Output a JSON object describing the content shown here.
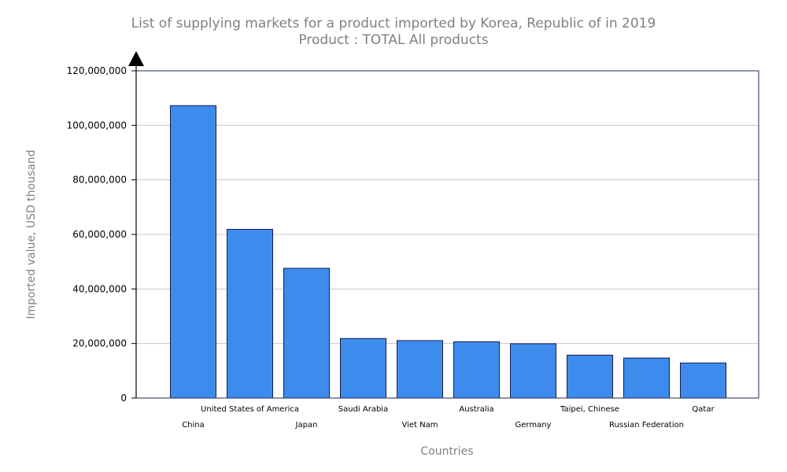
{
  "chart_data": {
    "type": "bar",
    "title": "List of supplying markets for a product imported by Korea, Republic of in 2019",
    "subtitle": "Product : TOTAL All products",
    "xlabel": "Countries",
    "ylabel": "Imported value, USD thousand",
    "ylim": [
      0,
      120000000
    ],
    "yticks": [
      "0",
      "20,000,000",
      "40,000,000",
      "60,000,000",
      "80,000,000",
      "100,000,000",
      "120,000,000"
    ],
    "grid": true,
    "categories": [
      "China",
      "United States of America",
      "Japan",
      "Saudi Arabia",
      "Viet Nam",
      "Australia",
      "Germany",
      "Taipei, Chinese",
      "Russian Federation",
      "Qatar"
    ],
    "values": [
      107229000,
      61879000,
      47581000,
      21842000,
      21072000,
      20621000,
      19932000,
      15735000,
      14683000,
      12872000
    ],
    "bar_color": "#3d8ced",
    "bar_outline": "#1a1a4a"
  }
}
